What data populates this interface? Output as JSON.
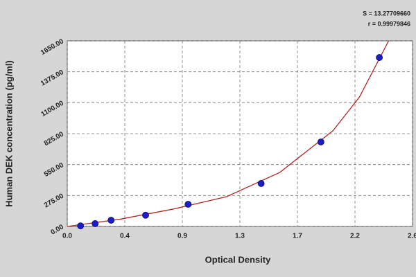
{
  "chart_data": {
    "type": "scatter",
    "x_label": "Optical Density",
    "y_label": "Human DEK concentration (pg/ml)",
    "annotations": [
      "S = 13.27709660",
      "r = 0.99979846"
    ],
    "series": [
      {
        "color": "#1c1cc8",
        "x": [
          0.1,
          0.21,
          0.33,
          0.59,
          0.91,
          1.46,
          1.91,
          2.35
        ],
        "values": [
          5,
          25,
          55,
          100,
          197,
          382,
          751,
          1502
        ]
      },
      {
        "type": "line",
        "color": "#b02828",
        "x": [
          0,
          0.4,
          0.8,
          1.2,
          1.6,
          2.0,
          2.2,
          2.42
        ],
        "values": [
          0,
          65,
          155,
          265,
          480,
          850,
          1150,
          1650
        ]
      }
    ],
    "xlim": [
      0,
      2.6
    ],
    "xticks": [
      {
        "value": 0,
        "label": "0.0"
      },
      {
        "value": 0.4333,
        "label": "0.4"
      },
      {
        "value": 0.8667,
        "label": "0.9"
      },
      {
        "value": 1.3,
        "label": "1.3"
      },
      {
        "value": 1.7333,
        "label": "1.7"
      },
      {
        "value": 2.1667,
        "label": "2.2"
      },
      {
        "value": 2.6,
        "label": "2.6"
      }
    ],
    "ylim": [
      0,
      1650
    ],
    "yticks": [
      {
        "value": 0,
        "label": "0.00"
      },
      {
        "value": 275,
        "label": "275.00"
      },
      {
        "value": 550,
        "label": "550.00"
      },
      {
        "value": 825,
        "label": "825.00"
      },
      {
        "value": 1100,
        "label": "1100.00"
      },
      {
        "value": 1375,
        "label": "1375.00"
      },
      {
        "value": 1650,
        "label": "1650.00"
      }
    ],
    "grid": true
  }
}
